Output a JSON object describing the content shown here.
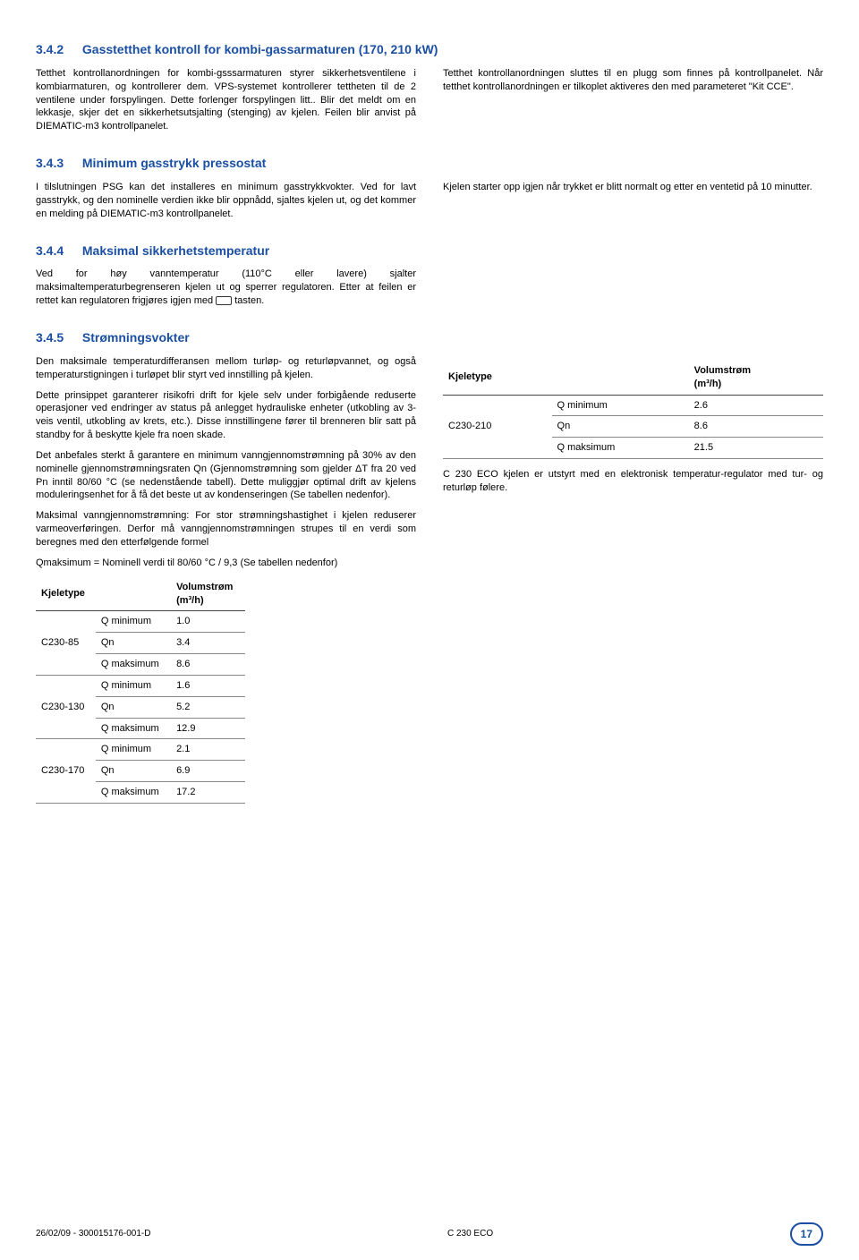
{
  "colors": {
    "accent": "#1a4fa3",
    "text": "#000000",
    "border": "#888888"
  },
  "s342": {
    "num": "3.4.2",
    "title": "Gasstetthet kontroll for kombi-gassarmaturen (170, 210 kW)",
    "left_p1": "Tetthet kontrollanordningen for kombi-gsssarmaturen styrer sikkerhetsventilene i kombiarmaturen, og kontrollerer dem. VPS-systemet kontrollerer tettheten til de 2 ventilene under forspylingen. Dette forlenger forspylingen litt.. Blir det meldt om en lekkasje, skjer det en sikkerhetsutsjalting (stenging) av kjelen. Feilen blir anvist på DIEMATIC-m3 kontrollpanelet.",
    "right_p1": "Tetthet kontrollanordningen sluttes til en plugg som finnes på kontrollpanelet. Når tetthet kontrollanordningen er tilkoplet aktiveres den med parameteret \"Kit CCE\"."
  },
  "s343": {
    "num": "3.4.3",
    "title": "Minimum gasstrykk pressostat",
    "left_p1": "I tilslutningen PSG kan det installeres en minimum gasstrykkvokter. Ved for lavt gasstrykk, og den nominelle verdien ikke blir oppnådd, sjaltes kjelen ut, og det kommer en melding på DIEMATIC-m3 kontrollpanelet.",
    "right_p1": "Kjelen starter opp igjen når trykket er blitt normalt og etter en ventetid på 10 minutter."
  },
  "s344": {
    "num": "3.4.4",
    "title": "Maksimal sikkerhetstemperatur",
    "p1_a": "Ved for høy vanntemperatur (110°C eller lavere) sjalter maksimaltemperaturbegrenseren kjelen ut og sperrer regulatoren. Etter at feilen er rettet kan regulatoren frigjøres igjen med ",
    "p1_b": " tasten."
  },
  "s345": {
    "num": "3.4.5",
    "title": "Strømningsvokter",
    "left_p1": "Den maksimale temperaturdifferansen mellom turløp- og returløpvannet, og også temperaturstigningen i turløpet blir styrt ved innstilling på kjelen.",
    "left_p2": "Dette prinsippet garanterer risikofri drift for kjele selv under forbigående reduserte operasjoner ved endringer av status på anlegget hydrauliske enheter (utkobling av 3-veis ventil, utkobling av krets, etc.). Disse innstillingene fører til brenneren blir satt på standby for å beskytte kjele fra noen skade.",
    "left_p3": "Det anbefales sterkt å garantere en minimum vanngjennomstrømning på 30% av den nominelle gjennomstrømningsraten Qn (Gjennomstrømning som gjelder ΔT fra 20 ved Pn inntil 80/60 °C (se nedenstående tabell). Dette muliggjør optimal drift av kjelens moduleringsenhet for å få det beste ut av kondenseringen (Se tabellen nedenfor).",
    "left_p4": "Maksimal vanngjennomstrømning: For stor strømningshastighet i kjelen reduserer varmeoverføringen. Derfor må vanngjennomstrømningen strupes til en verdi som beregnes med den etterfølgende formel",
    "left_p5": "Qmaksimum = Nominell verdi til 80/60 °C / 9,3 (Se tabellen nedenfor)",
    "right_p1": "C 230 ECO kjelen er utstyrt med en elektronisk temperatur-regulator med tur- og returløp følere."
  },
  "table_headers": {
    "type": "Kjeletype",
    "flow_l1": "Volumstrøm",
    "flow_l2": "(m³/h)"
  },
  "row_labels": {
    "qmin": "Q minimum",
    "qn": "Qn",
    "qmax": "Q maksimum"
  },
  "left_table": {
    "r1": {
      "type": "C230-85",
      "qmin": "1.0",
      "qn": "3.4",
      "qmax": "8.6"
    },
    "r2": {
      "type": "C230-130",
      "qmin": "1.6",
      "qn": "5.2",
      "qmax": "12.9"
    },
    "r3": {
      "type": "C230-170",
      "qmin": "2.1",
      "qn": "6.9",
      "qmax": "17.2"
    }
  },
  "right_table": {
    "r1": {
      "type": "C230-210",
      "qmin": "2.6",
      "qn": "8.6",
      "qmax": "21.5"
    }
  },
  "footer": {
    "left": "26/02/09 - 300015176-001-D",
    "center": "C 230 ECO",
    "page": "17"
  }
}
